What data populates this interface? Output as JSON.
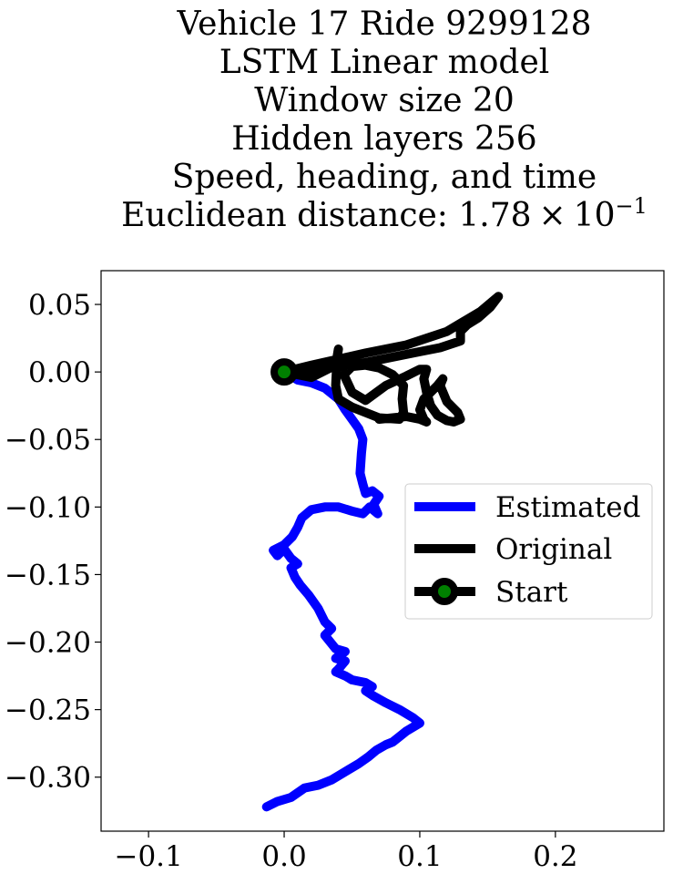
{
  "chart_data": {
    "type": "line",
    "title_lines": [
      "Vehicle 17 Ride 9299128",
      "LSTM Linear model",
      "Window size 20",
      "Hidden layers 256",
      "Speed, heading, and time"
    ],
    "title_metric_prefix": "Euclidean distance: 1.78",
    "title_metric_times": "×",
    "title_metric_base": "10",
    "title_metric_exponent": "−1",
    "xlabel": "",
    "ylabel": "",
    "xlim": [
      -0.135,
      0.28
    ],
    "ylim": [
      -0.34,
      0.075
    ],
    "xticks": [
      -0.1,
      0.0,
      0.1,
      0.2
    ],
    "xtick_labels": [
      "−0.1",
      "0.0",
      "0.1",
      "0.2"
    ],
    "yticks": [
      0.05,
      0.0,
      -0.05,
      -0.1,
      -0.15,
      -0.2,
      -0.25,
      -0.3
    ],
    "ytick_labels": [
      "0.05",
      "0.00",
      "−0.05",
      "−0.10",
      "−0.15",
      "−0.20",
      "−0.25",
      "−0.30"
    ],
    "grid": false,
    "legend_position": "center-right",
    "series": [
      {
        "name": "Estimated",
        "color": "#0000ff",
        "x": [
          0.0,
          0.01,
          0.02,
          0.03,
          0.04,
          0.045,
          0.05,
          0.055,
          0.058,
          0.057,
          0.056,
          0.058,
          0.06,
          0.065,
          0.07,
          0.066,
          0.069,
          0.063,
          0.058,
          0.05,
          0.04,
          0.03,
          0.02,
          0.013,
          0.01,
          0.006,
          0.0,
          -0.008,
          -0.005,
          0.0,
          0.005,
          0.01,
          0.005,
          0.008,
          0.012,
          0.018,
          0.025,
          0.03,
          0.035,
          0.03,
          0.038,
          0.045,
          0.038,
          0.045,
          0.04,
          0.038,
          0.045,
          0.05,
          0.06,
          0.065,
          0.06,
          0.066,
          0.075,
          0.085,
          0.095,
          0.1,
          0.09,
          0.085,
          0.08,
          0.075,
          0.068,
          0.062,
          0.055,
          0.045,
          0.035,
          0.025,
          0.015,
          0.005,
          -0.005,
          -0.013
        ],
        "y": [
          0.0,
          -0.006,
          -0.008,
          -0.012,
          -0.02,
          -0.028,
          -0.035,
          -0.042,
          -0.05,
          -0.06,
          -0.075,
          -0.083,
          -0.09,
          -0.088,
          -0.092,
          -0.098,
          -0.105,
          -0.1,
          -0.105,
          -0.103,
          -0.1,
          -0.1,
          -0.102,
          -0.108,
          -0.115,
          -0.122,
          -0.128,
          -0.132,
          -0.136,
          -0.131,
          -0.138,
          -0.142,
          -0.145,
          -0.152,
          -0.158,
          -0.165,
          -0.175,
          -0.185,
          -0.19,
          -0.195,
          -0.205,
          -0.207,
          -0.212,
          -0.214,
          -0.22,
          -0.222,
          -0.225,
          -0.228,
          -0.23,
          -0.233,
          -0.236,
          -0.24,
          -0.245,
          -0.25,
          -0.256,
          -0.26,
          -0.266,
          -0.27,
          -0.274,
          -0.276,
          -0.28,
          -0.285,
          -0.29,
          -0.296,
          -0.302,
          -0.306,
          -0.308,
          -0.315,
          -0.318,
          -0.322
        ]
      },
      {
        "name": "Original",
        "color": "#000000",
        "x": [
          0.0,
          0.02,
          0.038,
          0.06,
          0.09,
          0.12,
          0.145,
          0.158,
          0.152,
          0.143,
          0.135,
          0.13,
          0.13,
          0.115,
          0.1,
          0.085,
          0.07,
          0.055,
          0.04,
          0.03,
          0.01,
          0.0,
          0.02,
          0.038,
          0.04,
          0.039,
          0.038,
          0.04,
          0.05,
          0.06,
          0.07,
          0.085,
          0.088,
          0.087,
          0.088,
          0.08,
          0.07,
          0.06,
          0.05,
          0.044,
          0.05,
          0.06,
          0.075,
          0.09,
          0.1,
          0.105,
          0.103,
          0.105,
          0.108,
          0.113,
          0.12,
          0.125,
          0.13,
          0.128,
          0.12,
          0.115,
          0.117,
          0.113,
          0.108,
          0.103,
          0.1,
          0.103,
          0.105,
          0.1,
          0.09,
          0.08,
          0.07
        ],
        "y": [
          0.0,
          0.005,
          0.009,
          0.014,
          0.02,
          0.03,
          0.045,
          0.056,
          0.048,
          0.04,
          0.035,
          0.03,
          0.023,
          0.018,
          0.015,
          0.012,
          0.009,
          0.006,
          0.004,
          0.003,
          0.001,
          0.0,
          -0.004,
          0.005,
          0.017,
          0.01,
          -0.01,
          -0.02,
          -0.026,
          -0.03,
          -0.034,
          -0.035,
          -0.03,
          -0.02,
          -0.01,
          -0.002,
          0.003,
          0.005,
          0.004,
          -0.002,
          -0.015,
          -0.021,
          -0.01,
          -0.003,
          0.002,
          0.002,
          -0.005,
          -0.015,
          -0.025,
          -0.032,
          -0.036,
          -0.037,
          -0.035,
          -0.03,
          -0.022,
          -0.01,
          -0.005,
          -0.01,
          -0.015,
          -0.02,
          -0.028,
          -0.035,
          -0.037,
          -0.035,
          -0.033,
          -0.034,
          -0.035
        ]
      }
    ],
    "start_point": {
      "name": "Start",
      "x": 0.0,
      "y": 0.0,
      "marker_face_color": "#008000",
      "marker_edge_color": "#000000"
    },
    "legend_entries": [
      "Estimated",
      "Original",
      "Start"
    ]
  }
}
